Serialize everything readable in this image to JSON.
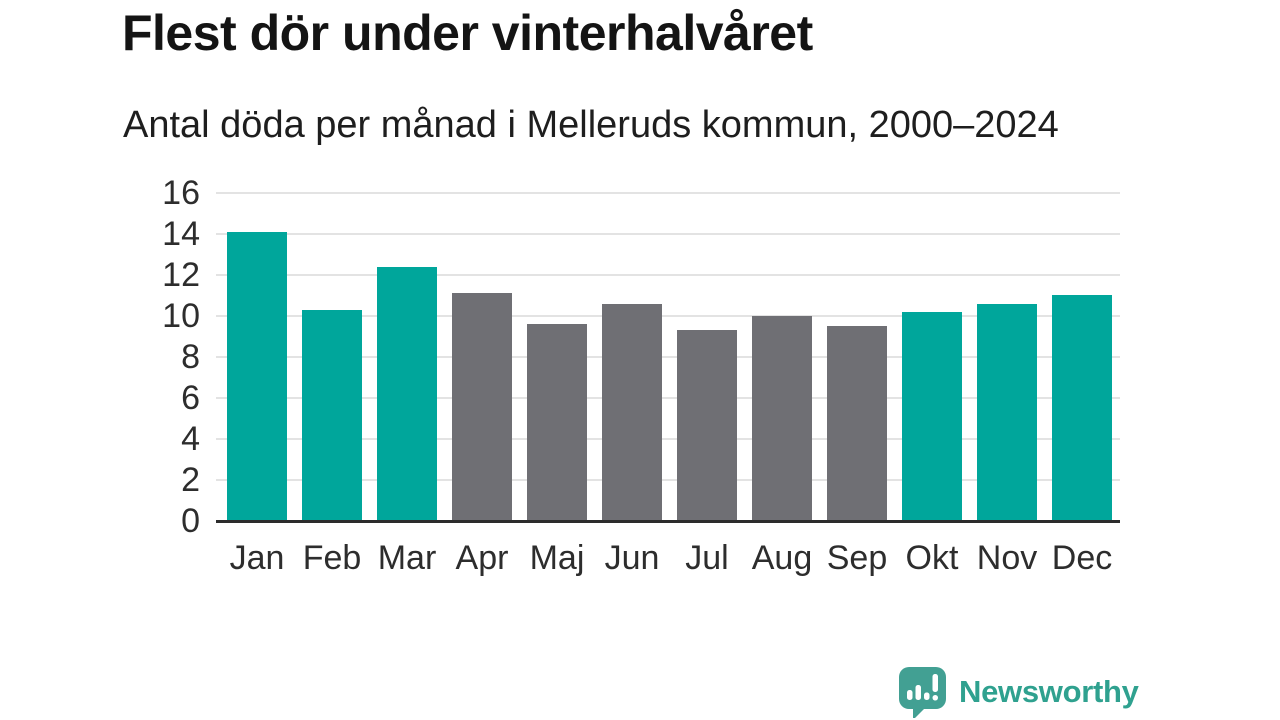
{
  "header": {
    "title": "Flest dör under vinterhalvåret",
    "subtitle": "Antal döda per månad i Melleruds kommun, 2000–2024"
  },
  "branding": {
    "logo_text": "Newsworthy",
    "logo_icon": "newsworthy-speech-bubble-bar-chart-icon",
    "logo_bubble_color": "#42a093",
    "logo_text_color": "#2fa18f"
  },
  "chart_data": {
    "type": "bar",
    "title": "Flest dör under vinterhalvåret",
    "subtitle": "Antal döda per månad i Melleruds kommun, 2000–2024",
    "categories": [
      "Jan",
      "Feb",
      "Mar",
      "Apr",
      "Maj",
      "Jun",
      "Jul",
      "Aug",
      "Sep",
      "Okt",
      "Nov",
      "Dec"
    ],
    "values": [
      14.1,
      10.3,
      12.4,
      11.1,
      9.6,
      10.6,
      9.3,
      10.0,
      9.5,
      10.2,
      10.6,
      11.0
    ],
    "bar_color_keys": [
      "teal",
      "teal",
      "teal",
      "gray",
      "gray",
      "gray",
      "gray",
      "gray",
      "gray",
      "teal",
      "teal",
      "teal"
    ],
    "colors": {
      "teal": "#00a69b",
      "gray": "#6f6f74"
    },
    "highlight_meaning": "winter-half-year months (Okt–Mar) in teal, summer months (Apr–Sep) in gray",
    "xlabel": "",
    "ylabel": "",
    "ylim": [
      0,
      16
    ],
    "yticks": [
      0,
      2,
      4,
      6,
      8,
      10,
      12,
      14,
      16
    ],
    "grid": "horizontal",
    "legend": "none"
  }
}
